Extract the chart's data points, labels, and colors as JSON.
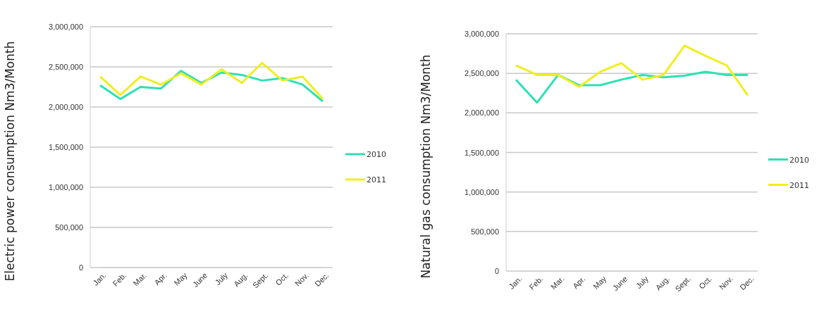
{
  "chart_data": [
    {
      "type": "line",
      "ylabel": "Electric power consumption  Nm3/Month",
      "categories": [
        "Jan.",
        "Feb.",
        "Mar.",
        "Apr.",
        "May",
        "June",
        "July",
        "Aug.",
        "Sept.",
        "Oct.",
        "Nov.",
        "Dec."
      ],
      "series": [
        {
          "name": "2010",
          "color": "#2ee0b4",
          "values": [
            2270000,
            2100000,
            2250000,
            2230000,
            2450000,
            2300000,
            2430000,
            2400000,
            2330000,
            2360000,
            2280000,
            2070000
          ]
        },
        {
          "name": "2011",
          "color": "#f0ee1e",
          "values": [
            2380000,
            2150000,
            2380000,
            2280000,
            2420000,
            2280000,
            2470000,
            2300000,
            2550000,
            2330000,
            2380000,
            2100000
          ]
        }
      ],
      "ylim": [
        0,
        3000000
      ],
      "yticks": [
        {
          "value": 0,
          "label": "0"
        },
        {
          "value": 500000,
          "label": "500,000"
        },
        {
          "value": 1000000,
          "label": "1,000,000"
        },
        {
          "value": 1500000,
          "label": "1,500,000"
        },
        {
          "value": 2000000,
          "label": "2,000,000"
        },
        {
          "value": 2500000,
          "label": "2,500,000"
        },
        {
          "value": 3000000,
          "label": "3,000,000"
        }
      ],
      "grid": "y",
      "legend": "right",
      "marker": "none",
      "line_style": "solid"
    },
    {
      "type": "line",
      "ylabel": "Natural gas consumption  Nm3/Month",
      "categories": [
        "Jan.",
        "Feb.",
        "Mar.",
        "Apr.",
        "May",
        "June",
        "July",
        "Aug.",
        "Sept.",
        "Oct.",
        "Nov.",
        "Dec."
      ],
      "series": [
        {
          "name": "2010",
          "color": "#2ee0b4",
          "values": [
            2420000,
            2130000,
            2480000,
            2350000,
            2350000,
            2420000,
            2480000,
            2450000,
            2470000,
            2520000,
            2480000,
            2480000
          ]
        },
        {
          "name": "2011",
          "color": "#f0ee1e",
          "values": [
            2600000,
            2480000,
            2480000,
            2330000,
            2520000,
            2630000,
            2420000,
            2480000,
            2850000,
            2720000,
            2600000,
            2220000
          ]
        }
      ],
      "ylim": [
        0,
        3000000
      ],
      "yticks": [
        {
          "value": 0,
          "label": "0"
        },
        {
          "value": 500000,
          "label": "500,000"
        },
        {
          "value": 1000000,
          "label": "1,000,000"
        },
        {
          "value": 1500000,
          "label": "1,500,000"
        },
        {
          "value": 2000000,
          "label": "2,000,000"
        },
        {
          "value": 2500000,
          "label": "2,500,000"
        },
        {
          "value": 3000000,
          "label": "3,000,000"
        }
      ],
      "grid": "y",
      "legend": "right",
      "marker": "none",
      "line_style": "solid"
    }
  ]
}
